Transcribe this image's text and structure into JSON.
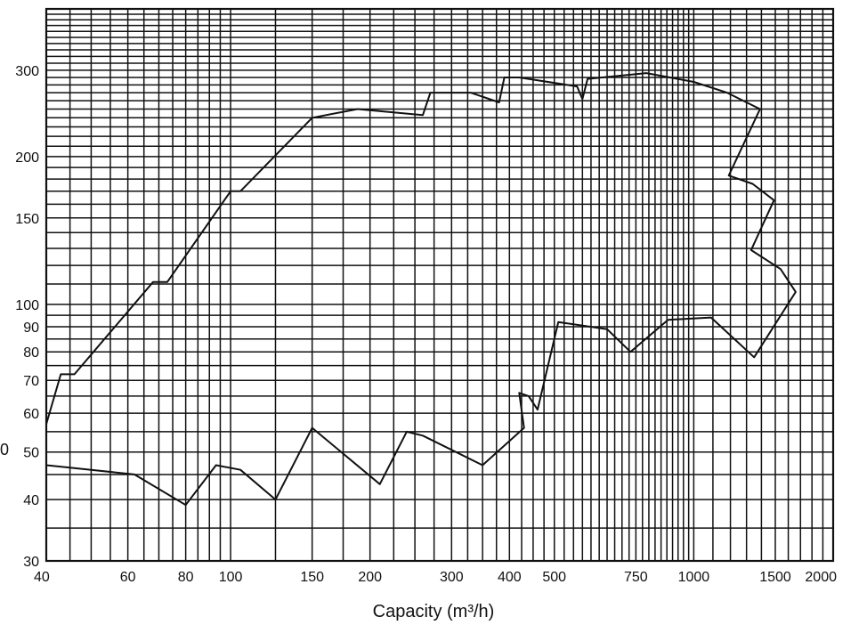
{
  "chart_data": {
    "type": "line",
    "title": "",
    "xlabel": "Capacity (m³/h)",
    "ylabel": "",
    "x_scale": "log",
    "y_scale": "log",
    "xlim": [
      40,
      2000
    ],
    "ylim": [
      30,
      400
    ],
    "grid": true,
    "x_ticks": [
      40,
      60,
      80,
      100,
      150,
      200,
      300,
      400,
      500,
      750,
      1000,
      1500,
      2000
    ],
    "x_tick_labels": [
      "40",
      "60",
      "80",
      "100",
      "150",
      "200",
      "300",
      "400",
      "500",
      "750",
      "1000",
      "1500",
      "2000"
    ],
    "y_ticks": [
      30,
      40,
      50,
      60,
      70,
      80,
      90,
      100,
      150,
      200,
      300
    ],
    "y_tick_labels": [
      "30",
      "40",
      "50",
      "60",
      "70",
      "80",
      "90",
      "100",
      "150",
      "200",
      "300"
    ],
    "left_edge_fragment": "0",
    "color": "#111111",
    "series": [
      {
        "values": [
          [
            40,
            57
          ],
          [
            43,
            72
          ],
          [
            46,
            72
          ],
          [
            68,
            111
          ],
          [
            73,
            111
          ],
          [
            100,
            170
          ],
          [
            105,
            170
          ],
          [
            150,
            240
          ],
          [
            188,
            250
          ],
          [
            260,
            243
          ],
          [
            270,
            270
          ],
          [
            330,
            270
          ],
          [
            380,
            258
          ],
          [
            390,
            290
          ],
          [
            420,
            290
          ],
          [
            560,
            278
          ],
          [
            575,
            262
          ],
          [
            590,
            288
          ],
          [
            790,
            296
          ],
          [
            1000,
            284
          ],
          [
            1180,
            270
          ],
          [
            1390,
            250
          ],
          [
            1190,
            183
          ],
          [
            1340,
            176
          ],
          [
            1490,
            163
          ],
          [
            1330,
            129
          ],
          [
            1540,
            118
          ],
          [
            1660,
            106
          ],
          [
            1350,
            78
          ],
          [
            1090,
            94
          ],
          [
            880,
            93
          ],
          [
            730,
            80
          ],
          [
            650,
            89
          ],
          [
            510,
            92
          ],
          [
            460,
            61
          ],
          [
            440,
            65
          ],
          [
            420,
            66
          ],
          [
            430,
            56
          ],
          [
            350,
            47
          ],
          [
            260,
            54
          ],
          [
            240,
            55
          ],
          [
            210,
            43
          ],
          [
            150,
            56
          ],
          [
            125,
            40
          ],
          [
            105,
            46
          ],
          [
            93,
            47
          ],
          [
            80,
            39
          ],
          [
            62,
            45
          ],
          [
            50,
            46
          ],
          [
            40,
            47
          ]
        ]
      }
    ]
  }
}
